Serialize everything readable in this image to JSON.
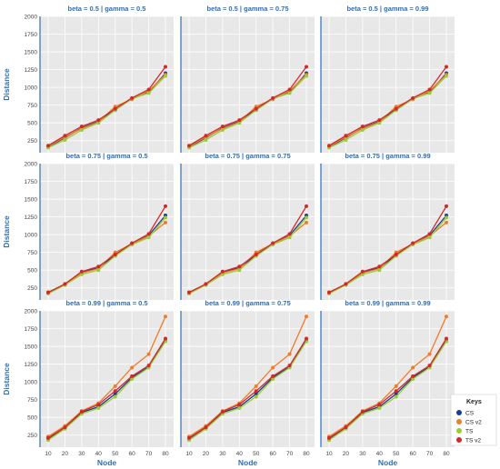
{
  "colors": {
    "CS": "#1f3a93",
    "CS v2": "#f07c2a",
    "TS": "#9acd32",
    "TS v2": "#d7262b"
  },
  "legend": {
    "title": "Keys",
    "items": [
      "CS",
      "CS v2",
      "TS",
      "TS v2"
    ]
  },
  "chart_data": {
    "type": "line",
    "layout": "3x3 facet grid",
    "xlabel": "Node",
    "ylabel": "Distance",
    "x": [
      10,
      20,
      30,
      40,
      50,
      60,
      70,
      80
    ],
    "xticks": [
      "10",
      "20",
      "30",
      "40",
      "50",
      "60",
      "70",
      "80"
    ],
    "yticks": [
      "250",
      "500",
      "750",
      "1000",
      "1250",
      "1500",
      "1750",
      "2000"
    ],
    "ylim": [
      80,
      2000
    ],
    "grid": true,
    "legend_position": "bottom-right",
    "panels": [
      {
        "title": "beta = 0.5 | gamma = 0.5",
        "series": [
          {
            "name": "CS",
            "values": [
              160,
              290,
              430,
              520,
              680,
              840,
              930,
              1200
            ]
          },
          {
            "name": "CS v2",
            "values": [
              170,
              300,
              420,
              510,
              730,
              830,
              950,
              1180
            ]
          },
          {
            "name": "TS",
            "values": [
              150,
              260,
              400,
              500,
              680,
              840,
              920,
              1160
            ]
          },
          {
            "name": "TS v2",
            "values": [
              180,
              320,
              450,
              540,
              700,
              850,
              970,
              1290
            ]
          }
        ]
      },
      {
        "title": "beta = 0.5 | gamma = 0.75",
        "series": [
          {
            "name": "CS",
            "values": [
              160,
              290,
              430,
              520,
              680,
              840,
              930,
              1200
            ]
          },
          {
            "name": "CS v2",
            "values": [
              170,
              300,
              420,
              510,
              730,
              830,
              950,
              1180
            ]
          },
          {
            "name": "TS",
            "values": [
              150,
              260,
              400,
              500,
              680,
              840,
              920,
              1160
            ]
          },
          {
            "name": "TS v2",
            "values": [
              180,
              320,
              450,
              540,
              700,
              850,
              970,
              1290
            ]
          }
        ]
      },
      {
        "title": "beta = 0.5 | gamma = 0.99",
        "series": [
          {
            "name": "CS",
            "values": [
              160,
              290,
              430,
              520,
              680,
              840,
              930,
              1200
            ]
          },
          {
            "name": "CS v2",
            "values": [
              170,
              300,
              420,
              510,
              730,
              830,
              950,
              1180
            ]
          },
          {
            "name": "TS",
            "values": [
              150,
              260,
              400,
              500,
              680,
              840,
              920,
              1160
            ]
          },
          {
            "name": "TS v2",
            "values": [
              180,
              320,
              450,
              540,
              700,
              850,
              970,
              1290
            ]
          }
        ]
      },
      {
        "title": "beta = 0.75 | gamma = 0.5",
        "series": [
          {
            "name": "CS",
            "values": [
              180,
              300,
              470,
              530,
              710,
              870,
              990,
              1270
            ]
          },
          {
            "name": "CS v2",
            "values": [
              190,
              300,
              460,
              520,
              750,
              870,
              980,
              1170
            ]
          },
          {
            "name": "TS",
            "values": [
              170,
              290,
              440,
              500,
              700,
              860,
              960,
              1240
            ]
          },
          {
            "name": "TS v2",
            "values": [
              185,
              305,
              480,
              550,
              720,
              880,
              1010,
              1400
            ]
          }
        ]
      },
      {
        "title": "beta = 0.75 | gamma = 0.75",
        "series": [
          {
            "name": "CS",
            "values": [
              180,
              300,
              470,
              530,
              710,
              870,
              990,
              1270
            ]
          },
          {
            "name": "CS v2",
            "values": [
              190,
              300,
              460,
              520,
              750,
              870,
              980,
              1170
            ]
          },
          {
            "name": "TS",
            "values": [
              170,
              290,
              440,
              500,
              700,
              860,
              960,
              1240
            ]
          },
          {
            "name": "TS v2",
            "values": [
              185,
              305,
              480,
              550,
              720,
              880,
              1010,
              1400
            ]
          }
        ]
      },
      {
        "title": "beta = 0.75 | gamma = 0.99",
        "series": [
          {
            "name": "CS",
            "values": [
              180,
              300,
              470,
              530,
              710,
              870,
              990,
              1270
            ]
          },
          {
            "name": "CS v2",
            "values": [
              190,
              300,
              460,
              520,
              750,
              870,
              980,
              1170
            ]
          },
          {
            "name": "TS",
            "values": [
              170,
              290,
              440,
              500,
              700,
              860,
              960,
              1240
            ]
          },
          {
            "name": "TS v2",
            "values": [
              185,
              305,
              480,
              550,
              720,
              880,
              1010,
              1400
            ]
          }
        ]
      },
      {
        "title": "beta = 0.99 | gamma = 0.5",
        "series": [
          {
            "name": "CS",
            "values": [
              190,
              350,
              570,
              650,
              830,
              1060,
              1210,
              1580
            ]
          },
          {
            "name": "CS v2",
            "values": [
              230,
              380,
              590,
              700,
              940,
              1200,
              1390,
              1920
            ]
          },
          {
            "name": "TS",
            "values": [
              180,
              340,
              550,
              630,
              790,
              1040,
              1200,
              1570
            ]
          },
          {
            "name": "TS v2",
            "values": [
              210,
              360,
              580,
              680,
              870,
              1080,
              1230,
              1610
            ]
          }
        ]
      },
      {
        "title": "beta = 0.99 | gamma = 0.75",
        "series": [
          {
            "name": "CS",
            "values": [
              190,
              350,
              570,
              650,
              830,
              1060,
              1210,
              1580
            ]
          },
          {
            "name": "CS v2",
            "values": [
              230,
              380,
              590,
              700,
              940,
              1200,
              1390,
              1920
            ]
          },
          {
            "name": "TS",
            "values": [
              180,
              340,
              550,
              630,
              790,
              1040,
              1200,
              1570
            ]
          },
          {
            "name": "TS v2",
            "values": [
              210,
              360,
              580,
              680,
              870,
              1080,
              1230,
              1610
            ]
          }
        ]
      },
      {
        "title": "beta = 0.99 | gamma = 0.99",
        "series": [
          {
            "name": "CS",
            "values": [
              190,
              350,
              570,
              650,
              830,
              1060,
              1210,
              1580
            ]
          },
          {
            "name": "CS v2",
            "values": [
              230,
              380,
              590,
              700,
              940,
              1200,
              1390,
              1920
            ]
          },
          {
            "name": "TS",
            "values": [
              180,
              340,
              550,
              630,
              790,
              1040,
              1200,
              1570
            ]
          },
          {
            "name": "TS v2",
            "values": [
              210,
              360,
              580,
              680,
              870,
              1080,
              1230,
              1610
            ]
          }
        ]
      }
    ]
  }
}
